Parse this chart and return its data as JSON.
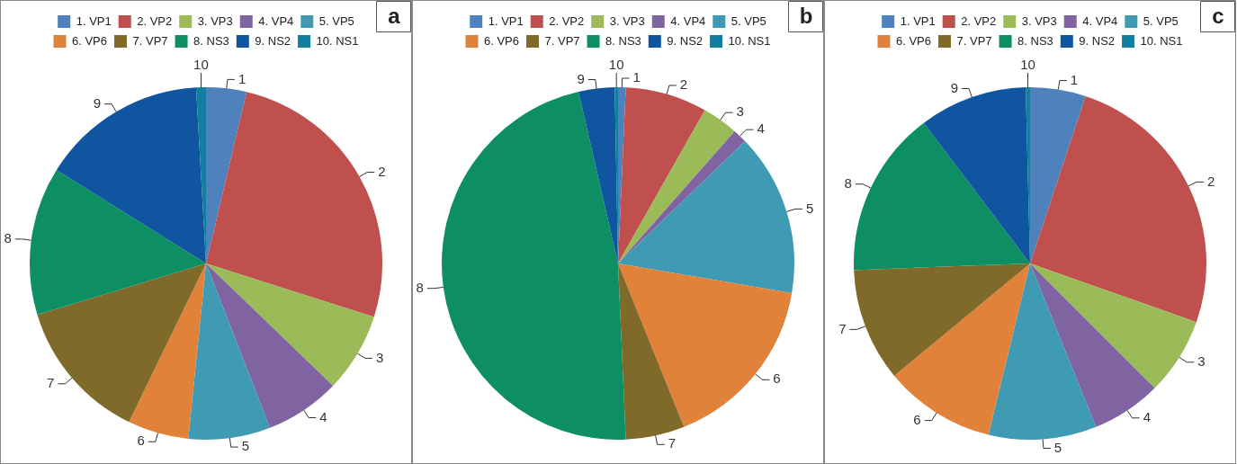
{
  "chart_data": [
    {
      "type": "pie",
      "title": "a",
      "legend": "top",
      "categories": [
        "1. VP1",
        "2. VP2",
        "3. VP3",
        "4. VP4",
        "5. VP5",
        "6. VP6",
        "7. VP7",
        "8. NS3",
        "9. NS2",
        "10. NS1"
      ],
      "values": [
        3.7,
        26.2,
        7.3,
        6.9,
        7.5,
        5.6,
        13.1,
        13.6,
        15.2,
        0.9
      ],
      "colors": [
        "#4f81bd",
        "#c0504d",
        "#9bbb59",
        "#8064a2",
        "#3f9bb3",
        "#e0823a",
        "#7f6a2a",
        "#0e8f63",
        "#0f55a0",
        "#137fa0"
      ],
      "annotations": [
        {
          "text": "1",
          "x": "1. VP1"
        },
        {
          "text": "2",
          "x": "2. VP2"
        },
        {
          "text": "3",
          "x": "3. VP3"
        },
        {
          "text": "4",
          "x": "4. VP4"
        },
        {
          "text": "5",
          "x": "5. VP5"
        },
        {
          "text": "6",
          "x": "6. VP6"
        },
        {
          "text": "7",
          "x": "7. VP7"
        },
        {
          "text": "8",
          "x": "8. NS3"
        },
        {
          "text": "9",
          "x": "9. NS2"
        },
        {
          "text": "10",
          "x": "10. NS1"
        }
      ]
    },
    {
      "type": "pie",
      "title": "b",
      "legend": "top",
      "categories": [
        "1. VP1",
        "2. VP2",
        "3. VP3",
        "4. VP4",
        "5. VP5",
        "6. VP6",
        "7. VP7",
        "8. NS3",
        "9. NS2",
        "10. NS1"
      ],
      "values": [
        0.7,
        7.5,
        3.3,
        1.3,
        14.9,
        16.2,
        5.4,
        47.1,
        3.3,
        0.3
      ],
      "colors": [
        "#4f81bd",
        "#c0504d",
        "#9bbb59",
        "#8064a2",
        "#3f9bb3",
        "#e0823a",
        "#7f6a2a",
        "#0e8f63",
        "#0f55a0",
        "#137fa0"
      ],
      "annotations": [
        {
          "text": "1",
          "x": "1. VP1"
        },
        {
          "text": "2",
          "x": "2. VP2"
        },
        {
          "text": "3",
          "x": "3. VP3"
        },
        {
          "text": "4",
          "x": "4. VP4"
        },
        {
          "text": "5",
          "x": "5. VP5"
        },
        {
          "text": "6",
          "x": "6. VP6"
        },
        {
          "text": "7",
          "x": "7. VP7"
        },
        {
          "text": "8",
          "x": "8. NS3"
        },
        {
          "text": "9",
          "x": "9. NS2"
        },
        {
          "text": "10",
          "x": "10. NS1"
        }
      ]
    },
    {
      "type": "pie",
      "title": "c",
      "legend": "top",
      "categories": [
        "1. VP1",
        "2. VP2",
        "3. VP3",
        "4. VP4",
        "5. VP5",
        "6. VP6",
        "7. VP7",
        "8. NS3",
        "9. NS2",
        "10. NS1"
      ],
      "values": [
        5.1,
        25.3,
        7.1,
        6.4,
        9.9,
        10.2,
        10.4,
        15.3,
        9.9,
        0.4
      ],
      "colors": [
        "#4f81bd",
        "#c0504d",
        "#9bbb59",
        "#8064a2",
        "#3f9bb3",
        "#e0823a",
        "#7f6a2a",
        "#0e8f63",
        "#0f55a0",
        "#137fa0"
      ],
      "annotations": [
        {
          "text": "1",
          "x": "1. VP1"
        },
        {
          "text": "2",
          "x": "2. VP2"
        },
        {
          "text": "3",
          "x": "3. VP3"
        },
        {
          "text": "4",
          "x": "4. VP4"
        },
        {
          "text": "5",
          "x": "5. VP5"
        },
        {
          "text": "6",
          "x": "6. VP6"
        },
        {
          "text": "7",
          "x": "7. VP7"
        },
        {
          "text": "8",
          "x": "8. NS3"
        },
        {
          "text": "9",
          "x": "9. NS2"
        },
        {
          "text": "10",
          "x": "10. NS1"
        }
      ]
    }
  ]
}
